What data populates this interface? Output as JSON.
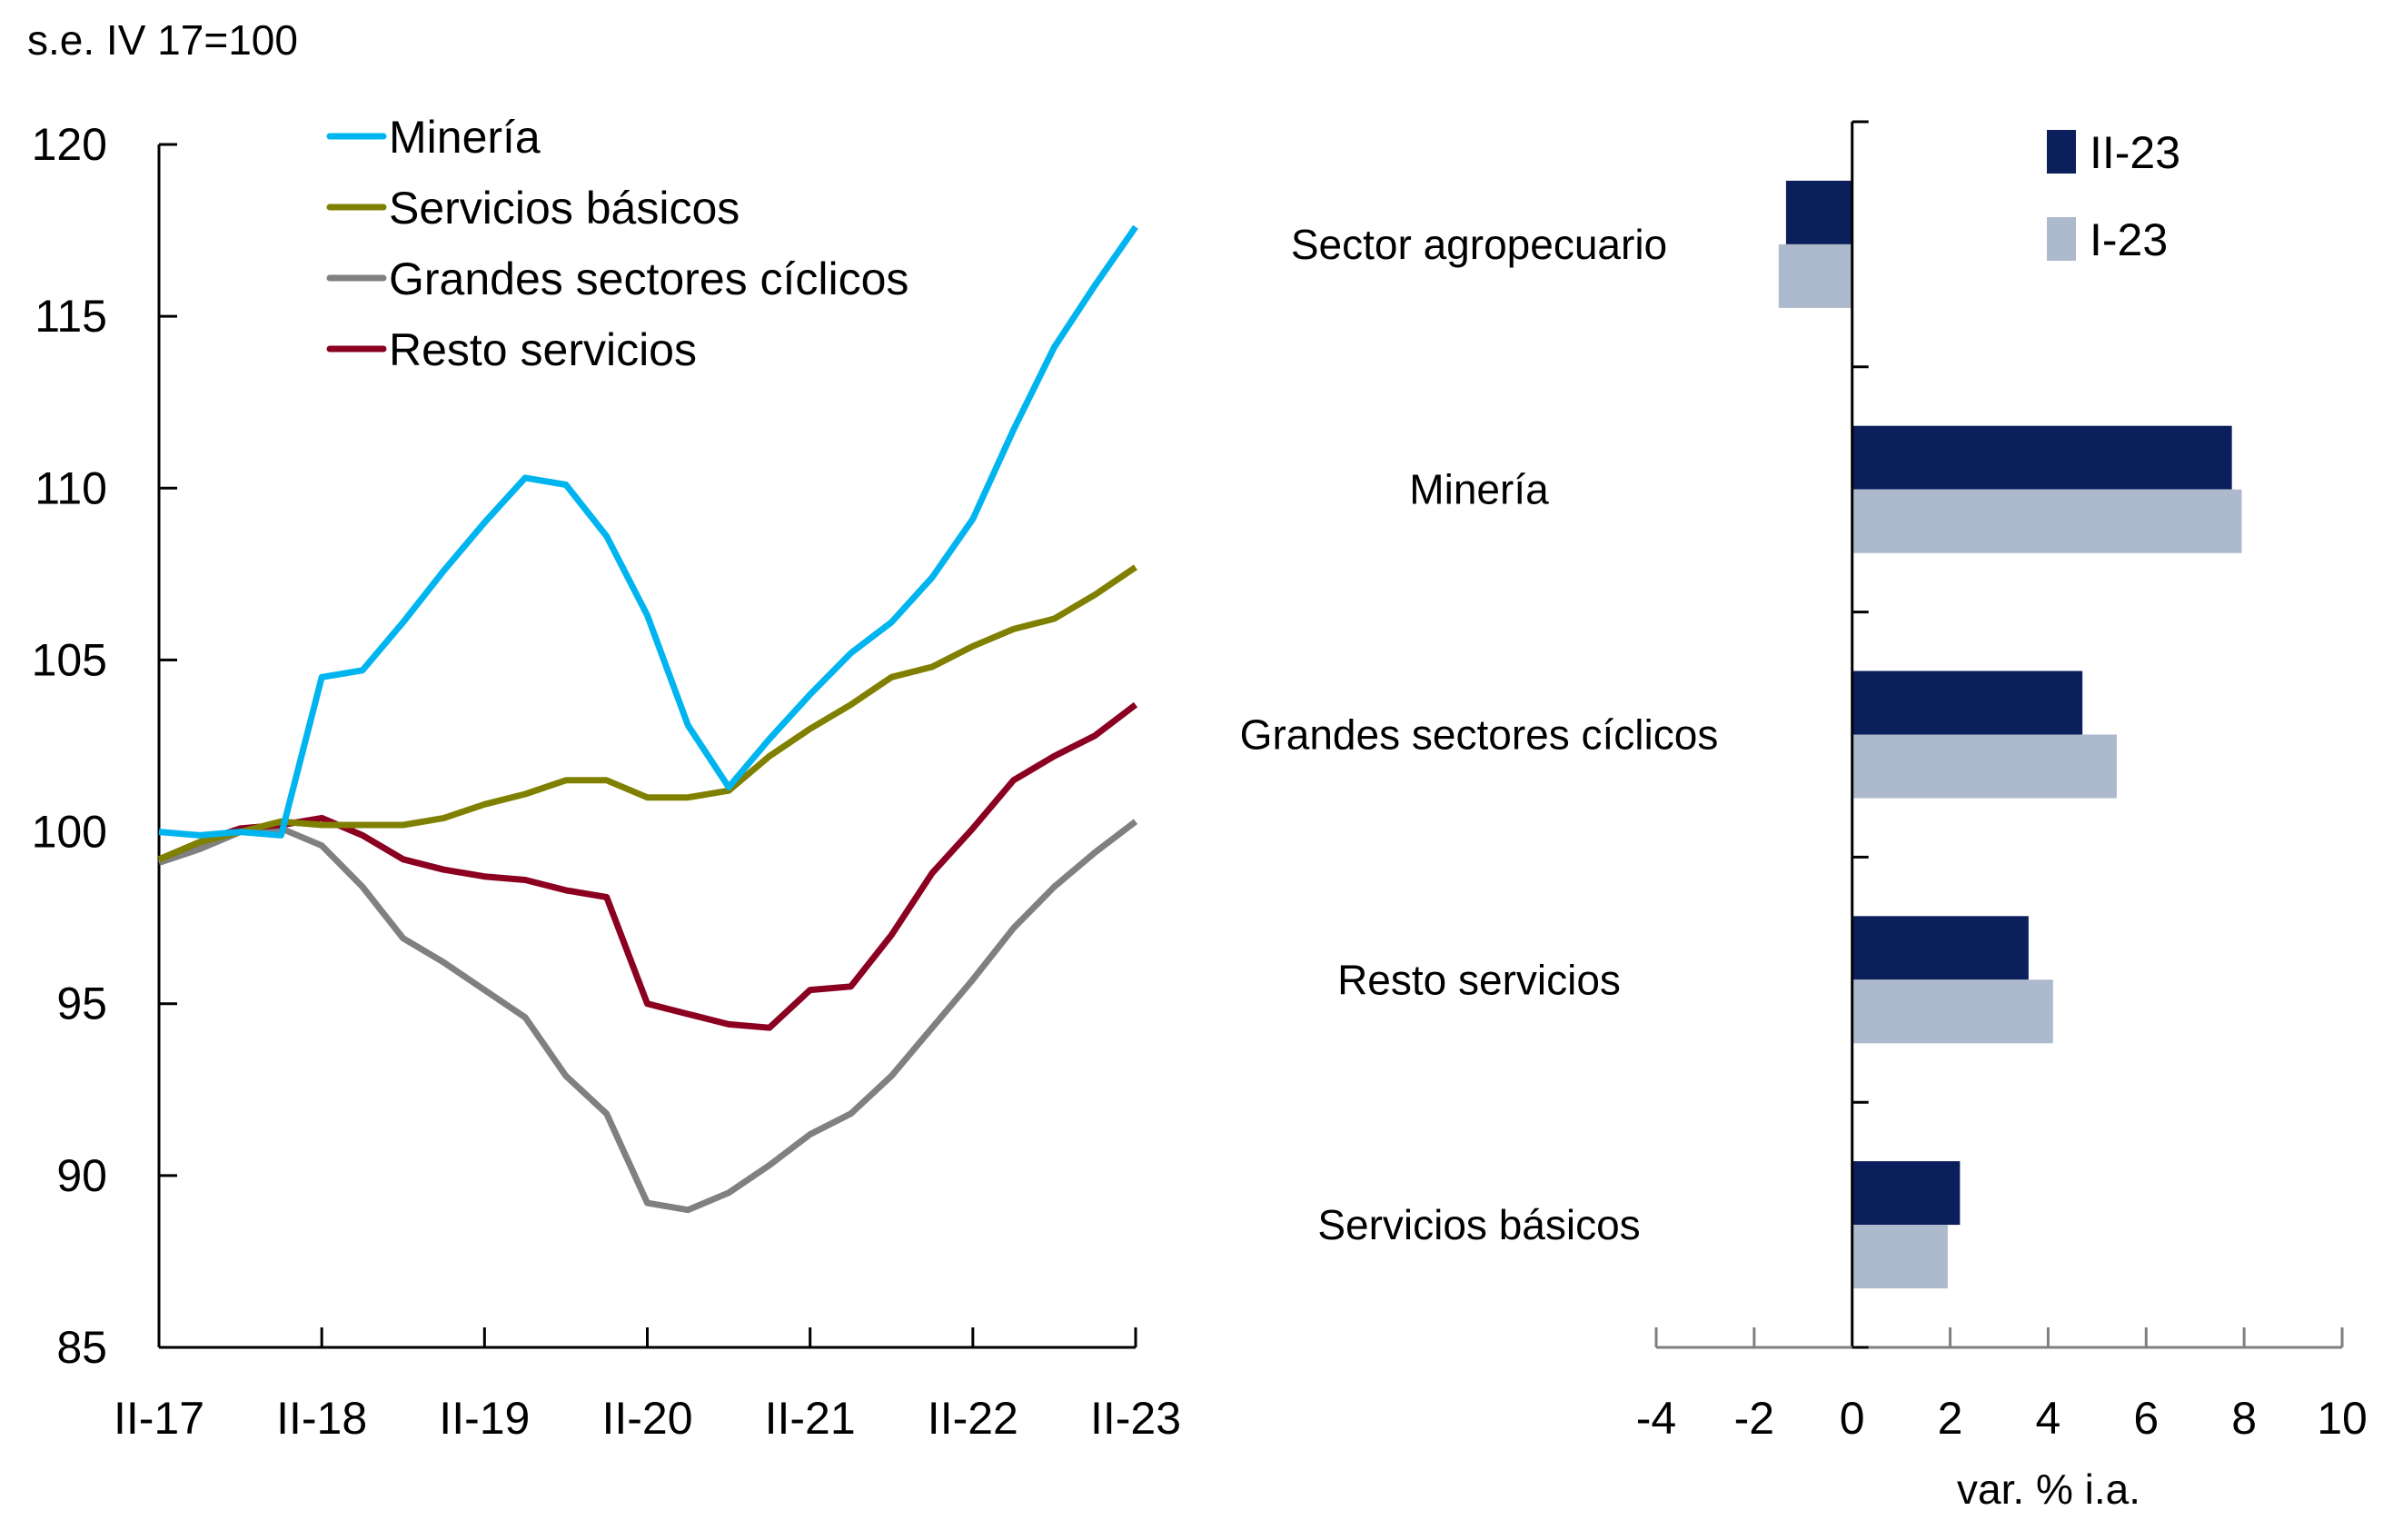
{
  "chart_data": [
    {
      "type": "line",
      "title": "",
      "units_label": "s.e. IV 17=100",
      "xlabel": "",
      "ylabel": "",
      "ylim": [
        85,
        120
      ],
      "yticks": [
        85,
        90,
        95,
        100,
        105,
        110,
        115,
        120
      ],
      "x": [
        "II-17",
        "III-17",
        "IV-17",
        "I-18",
        "II-18",
        "III-18",
        "IV-18",
        "I-19",
        "II-19",
        "III-19",
        "IV-19",
        "I-20",
        "II-20",
        "III-20",
        "IV-20",
        "I-21",
        "II-21",
        "III-21",
        "IV-21",
        "I-22",
        "II-22",
        "III-22",
        "IV-22",
        "I-23",
        "II-23"
      ],
      "xtick_labels": [
        "II-17",
        "II-18",
        "II-19",
        "II-20",
        "II-21",
        "II-22",
        "II-23"
      ],
      "grid": false,
      "legend_position": "top-left",
      "series": [
        {
          "name": "Minería",
          "color": "#00B5EF",
          "values": [
            100.0,
            99.9,
            100.0,
            99.9,
            104.5,
            104.7,
            106.1,
            107.6,
            109.0,
            110.3,
            110.1,
            108.6,
            106.3,
            103.1,
            101.3,
            102.7,
            104.0,
            105.2,
            106.1,
            107.4,
            109.1,
            111.7,
            114.1,
            115.9,
            117.6
          ]
        },
        {
          "name": "Servicios básicos",
          "color": "#808000",
          "values": [
            99.2,
            99.7,
            100.0,
            100.3,
            100.2,
            100.2,
            100.2,
            100.4,
            100.8,
            101.1,
            101.5,
            101.5,
            101.0,
            101.0,
            101.2,
            102.2,
            103.0,
            103.7,
            104.5,
            104.8,
            105.4,
            105.9,
            106.2,
            106.9,
            107.7
          ]
        },
        {
          "name": "Grandes sectores cíclicos",
          "color": "#808080",
          "values": [
            99.1,
            99.5,
            100.0,
            100.1,
            99.6,
            98.4,
            96.9,
            96.2,
            95.4,
            94.6,
            92.9,
            91.8,
            89.2,
            89.0,
            89.5,
            90.3,
            91.2,
            91.8,
            92.9,
            94.3,
            95.7,
            97.2,
            98.4,
            99.4,
            100.3
          ]
        },
        {
          "name": "Resto servicios",
          "color": "#8B0020",
          "values": [
            99.2,
            99.7,
            100.1,
            100.2,
            100.4,
            99.9,
            99.2,
            98.9,
            98.7,
            98.6,
            98.3,
            98.1,
            95.0,
            94.7,
            94.4,
            94.3,
            95.4,
            95.5,
            97.0,
            98.8,
            100.1,
            101.5,
            102.2,
            102.8,
            103.7
          ]
        }
      ]
    },
    {
      "type": "bar",
      "orientation": "horizontal",
      "title": "",
      "xlabel": "var. % i.a.",
      "ylabel": "",
      "xlim": [
        -4,
        10
      ],
      "xticks": [
        -4,
        -2,
        0,
        2,
        4,
        6,
        8,
        10
      ],
      "grid": false,
      "legend_position": "top-right",
      "categories": [
        "Sector agropecuario",
        "Minería",
        "Grandes sectores cíclicos",
        "Resto servicios",
        "Servicios básicos"
      ],
      "series": [
        {
          "name": "II-23",
          "color": "#0A1F5C",
          "values": [
            -1.35,
            7.75,
            4.7,
            3.6,
            2.2
          ]
        },
        {
          "name": "I-23",
          "color": "#ADB9CC",
          "values": [
            -1.5,
            7.95,
            5.4,
            4.1,
            1.95
          ]
        }
      ]
    }
  ]
}
